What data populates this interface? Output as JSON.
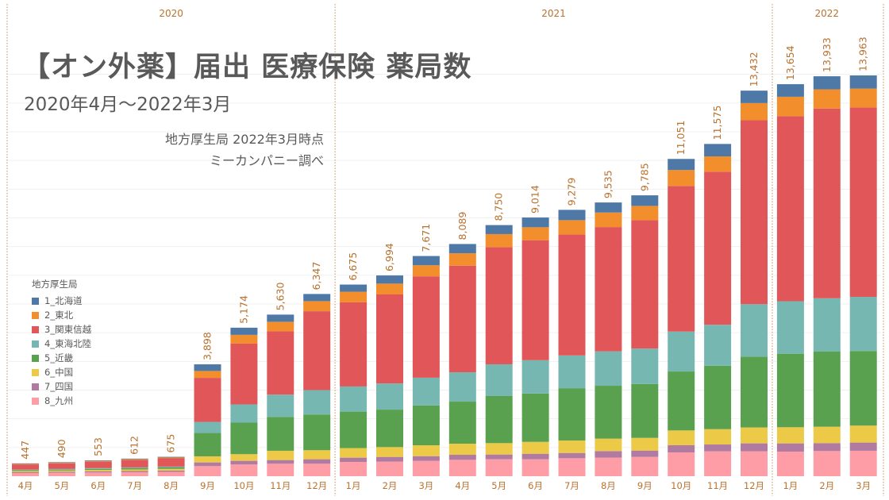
{
  "title": "【オン外薬】届出 医療保険 薬局数",
  "subtitle": "2020年4月～2022年3月",
  "notes": [
    "地方厚生局 2022年3月時点",
    "ミーカンパニー調べ"
  ],
  "chart_data": {
    "type": "bar",
    "stacked": true,
    "title": "【オン外薬】届出 医療保険 薬局数",
    "xlabel": "",
    "ylabel": "",
    "ylim": [
      0,
      14000
    ],
    "gridlines": true,
    "y_axis_visible": false,
    "legend_title": "地方厚生局",
    "legend_position": "left",
    "years": [
      {
        "label": "2020",
        "months": 9
      },
      {
        "label": "2021",
        "months": 12
      },
      {
        "label": "2022",
        "months": 3
      }
    ],
    "categories": [
      "4月",
      "5月",
      "6月",
      "7月",
      "8月",
      "9月",
      "10月",
      "11月",
      "12月",
      "1月",
      "2月",
      "3月",
      "4月",
      "5月",
      "6月",
      "7月",
      "8月",
      "9月",
      "10月",
      "11月",
      "12月",
      "1月",
      "2月",
      "3月"
    ],
    "totals": [
      447,
      490,
      553,
      612,
      675,
      3898,
      5174,
      5630,
      6347,
      6675,
      6994,
      7671,
      8089,
      8750,
      9014,
      9279,
      9535,
      9785,
      11051,
      11575,
      13432,
      13654,
      13933,
      13963
    ],
    "series": [
      {
        "name": "1_北海道",
        "color": "#4e79a7",
        "values": [
          17,
          18,
          20,
          21,
          23,
          231,
          249,
          249,
          249,
          249,
          285,
          322,
          322,
          313,
          341,
          359,
          350,
          368,
          387,
          433,
          433,
          438,
          457,
          457
        ]
      },
      {
        "name": "2_東北",
        "color": "#f28e2b",
        "values": [
          20,
          22,
          25,
          27,
          30,
          240,
          305,
          332,
          351,
          369,
          377,
          386,
          433,
          452,
          451,
          497,
          507,
          497,
          553,
          534,
          599,
          676,
          667,
          657
        ]
      },
      {
        "name": "3_関東信越",
        "color": "#e15759",
        "values": [
          180,
          198,
          228,
          258,
          287,
          1533,
          2116,
          2206,
          2749,
          2932,
          3101,
          3532,
          3713,
          4084,
          4180,
          4216,
          4330,
          4474,
          5074,
          5332,
          6407,
          6447,
          6610,
          6600
        ]
      },
      {
        "name": "4_東海北陸",
        "color": "#76b7b2",
        "values": [
          20,
          22,
          25,
          28,
          31,
          388,
          637,
          775,
          849,
          876,
          911,
          966,
          1023,
          1106,
          1160,
          1141,
          1198,
          1233,
          1391,
          1427,
          1825,
          1829,
          1857,
          1886
        ]
      },
      {
        "name": "5_近畿",
        "color": "#59a14f",
        "values": [
          30,
          33,
          38,
          42,
          47,
          813,
          1099,
          1181,
          1245,
          1272,
          1307,
          1389,
          1465,
          1641,
          1685,
          1823,
          1843,
          1878,
          2054,
          2210,
          2471,
          2562,
          2619,
          2600
        ]
      },
      {
        "name": "6_中国",
        "color": "#edc948",
        "values": [
          40,
          44,
          50,
          56,
          62,
          212,
          231,
          323,
          314,
          332,
          341,
          377,
          387,
          396,
          414,
          433,
          433,
          442,
          516,
          534,
          553,
          562,
          571,
          590
        ]
      },
      {
        "name": "7_四国",
        "color": "#b07aa1",
        "values": [
          30,
          33,
          37,
          40,
          45,
          129,
          129,
          129,
          157,
          148,
          166,
          166,
          175,
          166,
          193,
          184,
          230,
          221,
          249,
          239,
          277,
          286,
          276,
          286
        ]
      },
      {
        "name": "8_九州",
        "color": "#ff9da7",
        "values": [
          110,
          120,
          130,
          140,
          150,
          351,
          407,
          434,
          434,
          498,
          506,
          533,
          571,
          590,
          589,
          626,
          645,
          672,
          829,
          866,
          867,
          857,
          876,
          886
        ]
      }
    ],
    "colors": {
      "label_text": "#b9722f",
      "divider": "#d9b48f",
      "gridline": "#f0f0f0"
    }
  }
}
